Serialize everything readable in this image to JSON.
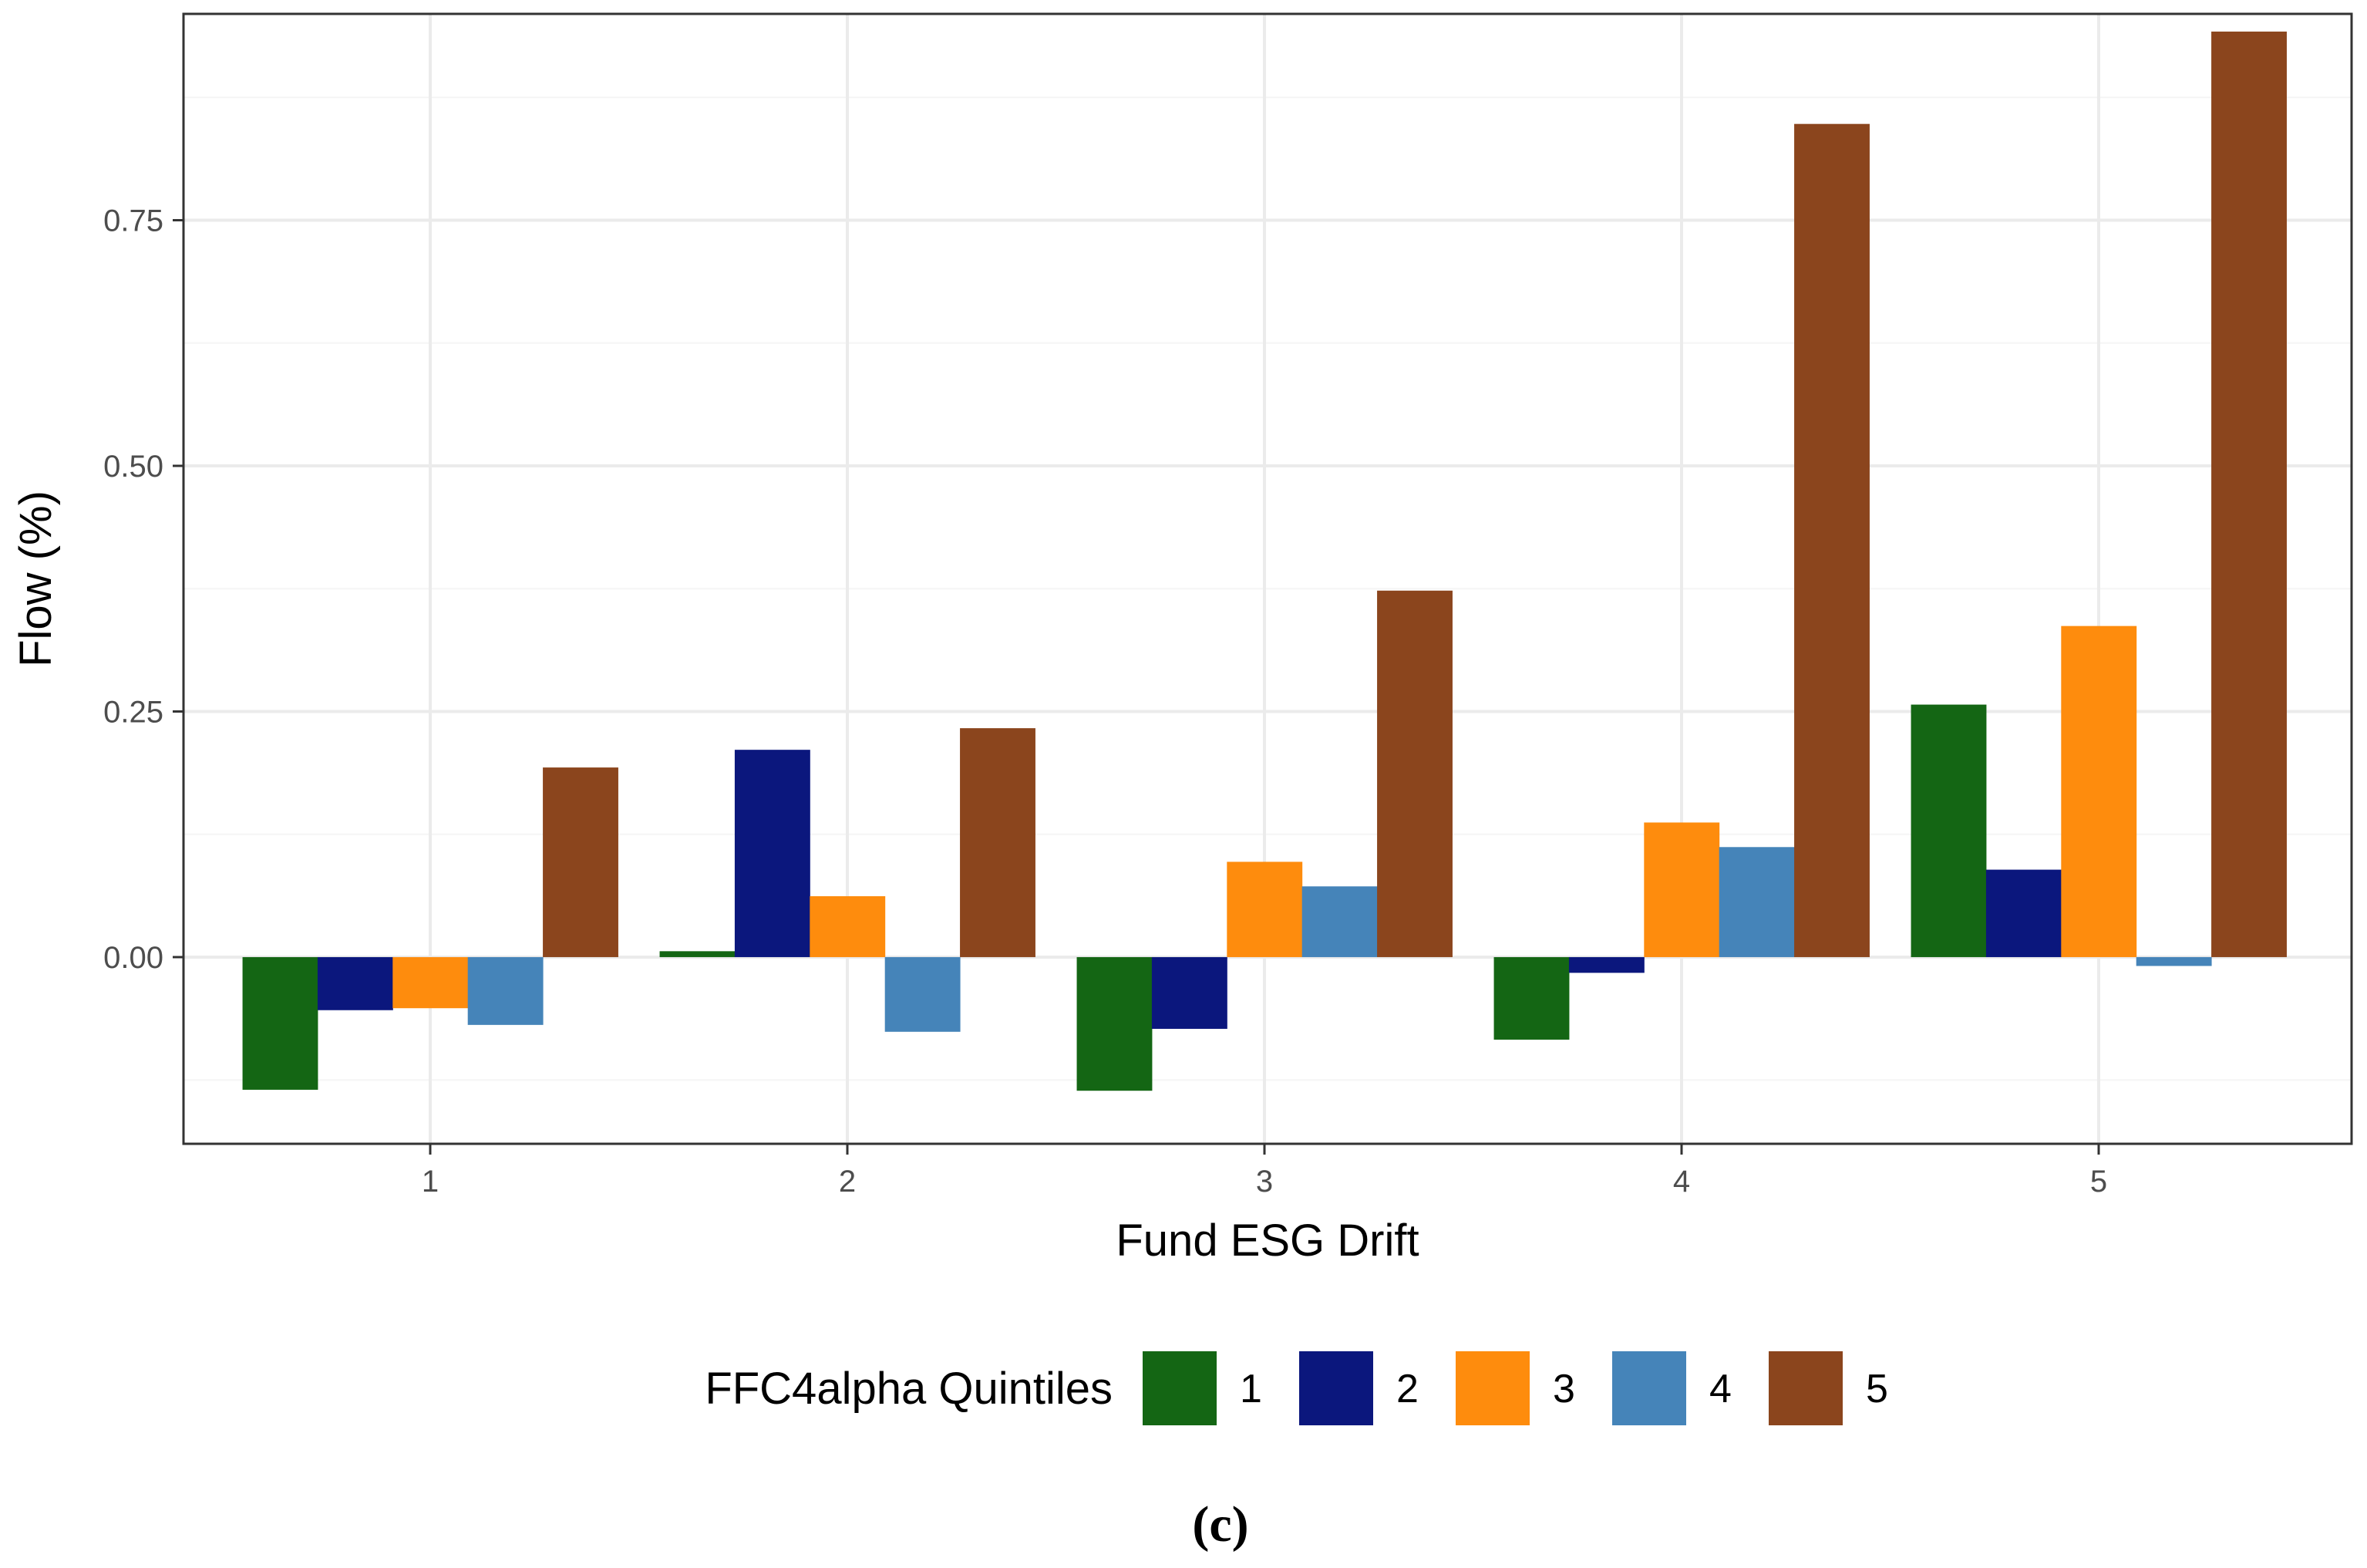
{
  "chart_data": {
    "type": "bar",
    "title": "",
    "xlabel": "Fund ESG Drift",
    "ylabel": "Flow (%)",
    "categories": [
      "1",
      "2",
      "3",
      "4",
      "5"
    ],
    "ylim": [
      -0.19,
      0.96
    ],
    "yticks": [
      0.0,
      0.25,
      0.5,
      0.75
    ],
    "ytick_labels": [
      "0.00",
      "0.25",
      "0.50",
      "0.75"
    ],
    "grid": true,
    "legend": {
      "title": "FFC4alpha Quintiles",
      "position": "bottom"
    },
    "series": [
      {
        "name": "1",
        "color": "#146614",
        "values": [
          -0.135,
          0.006,
          -0.136,
          -0.084,
          0.257
        ]
      },
      {
        "name": "2",
        "color": "#0b177d",
        "values": [
          -0.054,
          0.211,
          -0.073,
          -0.016,
          0.089
        ]
      },
      {
        "name": "3",
        "color": "#fe8c0d",
        "values": [
          -0.052,
          0.062,
          0.097,
          0.137,
          0.337
        ]
      },
      {
        "name": "4",
        "color": "#4584b9",
        "values": [
          -0.069,
          -0.076,
          0.072,
          0.112,
          -0.009
        ]
      },
      {
        "name": "5",
        "color": "#8b451d",
        "values": [
          0.193,
          0.233,
          0.373,
          0.848,
          0.942
        ]
      }
    ],
    "caption": "(c)"
  },
  "colors": {
    "grid_major": "#ebebeb",
    "grid_minor": "#f5f5f5",
    "panel_border": "#333333"
  }
}
